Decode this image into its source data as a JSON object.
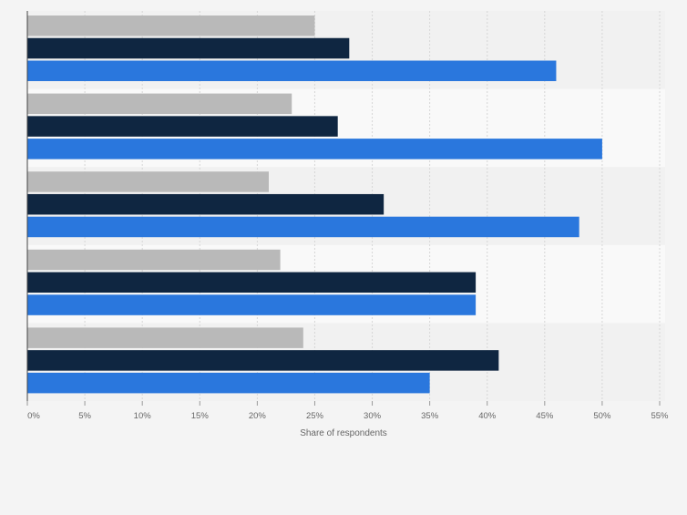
{
  "chart_data": {
    "type": "bar",
    "orientation": "horizontal",
    "title": "",
    "xlabel": "Share of respondents",
    "ylabel": "",
    "categories": [
      "",
      "",
      "",
      "",
      ""
    ],
    "xlim": [
      0,
      55
    ],
    "ticks": [
      0,
      5,
      10,
      15,
      20,
      25,
      30,
      35,
      40,
      45,
      50,
      55
    ],
    "tick_labels": [
      "0%",
      "5%",
      "10%",
      "15%",
      "20%",
      "25%",
      "30%",
      "35%",
      "40%",
      "45%",
      "50%",
      "55%"
    ],
    "grid": true,
    "legend": "none",
    "series": [
      {
        "name": "",
        "color": "#b9b9b9",
        "values": [
          25,
          23,
          21,
          22,
          24
        ]
      },
      {
        "name": "",
        "color": "#0f2641",
        "values": [
          28,
          27,
          31,
          39,
          41
        ]
      },
      {
        "name": "",
        "color": "#2a77dd",
        "values": [
          46,
          50,
          48,
          39,
          35
        ]
      }
    ]
  }
}
